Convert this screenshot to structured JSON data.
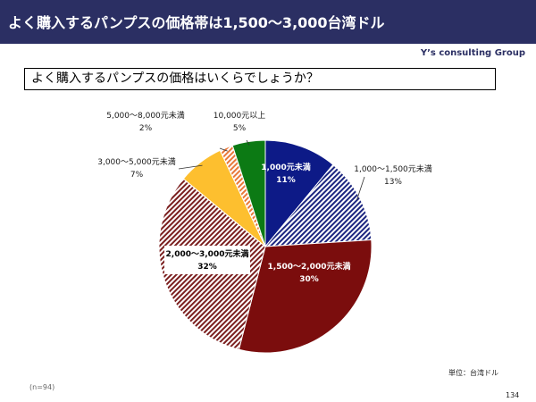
{
  "header": {
    "title": "よく購入するパンプスの価格帯は1,500～3,000台湾ドル"
  },
  "brand": "Y’s consulting Group",
  "chart_data": {
    "type": "pie",
    "title": "よく購入するパンプスの価格はいくらでしょうか？",
    "start_angle_deg": 0,
    "direction": "clockwise",
    "slices": [
      {
        "label": "1,000元未満",
        "value": 11,
        "pct_label": "11%",
        "color": "#0d1a87",
        "pattern": "solid"
      },
      {
        "label": "1,000～1,500元未満",
        "value": 13,
        "pct_label": "13%",
        "color": "#1c2680",
        "pattern": "hatch-diagonal"
      },
      {
        "label": "1,500～2,000元未満",
        "value": 30,
        "pct_label": "30%",
        "color": "#7b0d0d",
        "pattern": "solid"
      },
      {
        "label": "2,000～3,000元未満",
        "value": 32,
        "pct_label": "32%",
        "color": "#7b1f1f",
        "pattern": "hatch-diagonal"
      },
      {
        "label": "3,000～5,000元未満",
        "value": 7,
        "pct_label": "7%",
        "color": "#fdbf2f",
        "pattern": "solid"
      },
      {
        "label": "5,000～8,000元未満",
        "value": 2,
        "pct_label": "2%",
        "color": "#e8793a",
        "pattern": "hatch-diagonal"
      },
      {
        "label": "10,000元以上",
        "value": 5,
        "pct_label": "5%",
        "color": "#0c7a14",
        "pattern": "solid"
      }
    ],
    "unit": "単位：台湾ドル",
    "note": "(n=94)"
  },
  "page_number": "134"
}
